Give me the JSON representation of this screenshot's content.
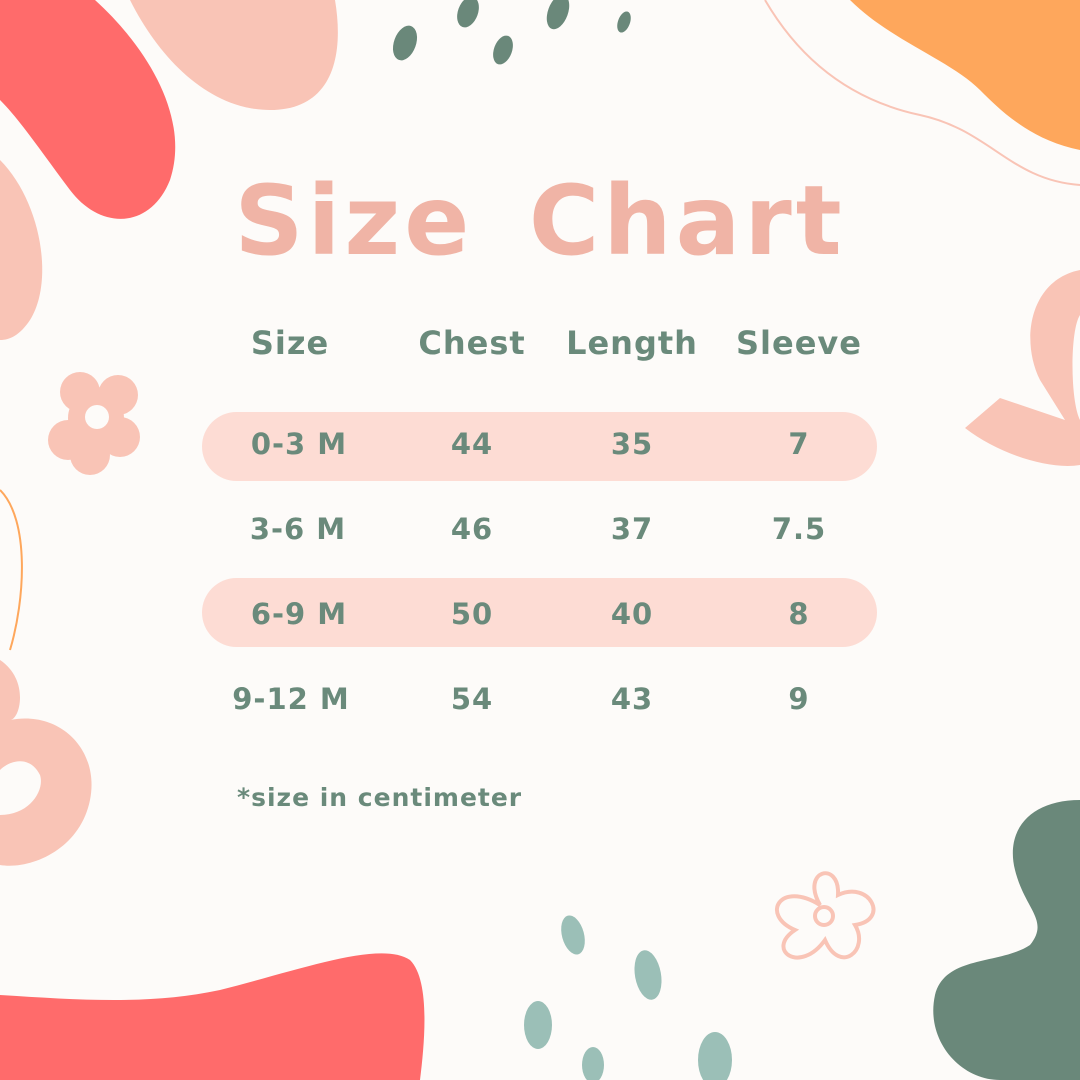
{
  "title": "Size Chart",
  "colors": {
    "title": "#f0b4a6",
    "text": "#6a8a7b",
    "row_highlight": "#fddcd4",
    "background": "#fdfbf9",
    "coral": "#ff6b6b",
    "pink": "#f9c4b6",
    "orange": "#fea75c",
    "green": "#6a887a",
    "teal": "#9bbfb7"
  },
  "table": {
    "headers": [
      "Size",
      "Chest",
      "Length",
      "Sleeve"
    ],
    "rows": [
      [
        "0-3 M",
        "44",
        "35",
        "7"
      ],
      [
        "3-6 M",
        "46",
        "37",
        "7.5"
      ],
      [
        "6-9 M",
        "50",
        "40",
        "8"
      ],
      [
        "9-12 M",
        "54",
        "43",
        "9"
      ]
    ]
  },
  "footnote": "*size in centimeter"
}
